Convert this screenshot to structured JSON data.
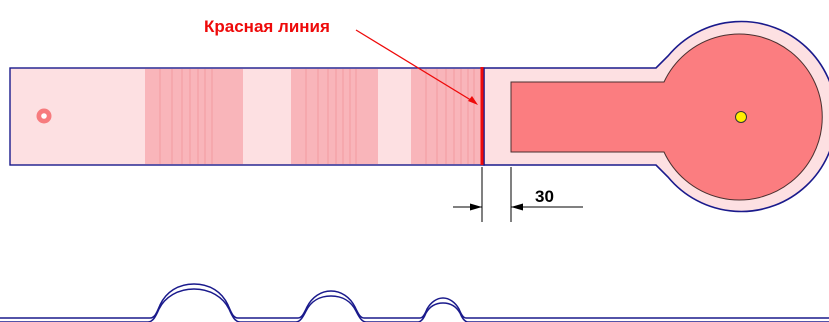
{
  "labels": {
    "red_line": "Красная линия",
    "dimension_value": "30"
  },
  "colors": {
    "outline": "#1a1a8c",
    "fill_light": "#fde0e2",
    "fill_stripe": "#f9b5ba",
    "fill_core": "#fb7d80",
    "red_line": "#ee0a0a",
    "marker_yellow": "#ffee00",
    "marker_ring": "#f77b7e",
    "dimension": "#000000"
  },
  "icons": {
    "pivot_marker": "yellow-center-dot",
    "mount_marker": "ring-dot"
  }
}
